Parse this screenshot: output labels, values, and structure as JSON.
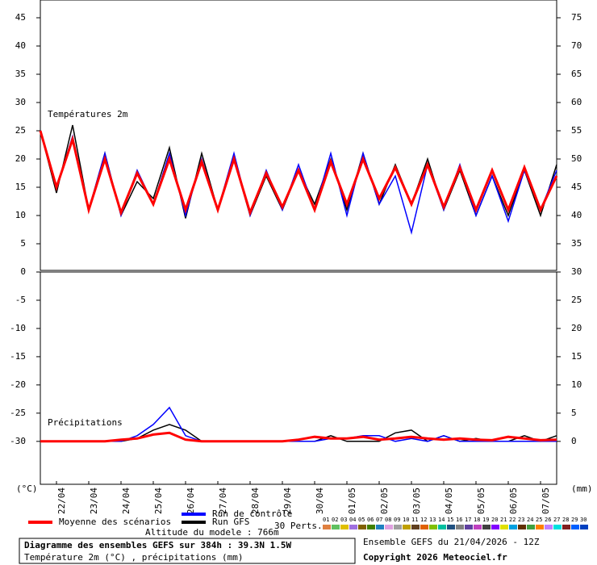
{
  "chart_data": [
    {
      "type": "line",
      "title": "Températures 2m",
      "x": [
        0,
        12,
        24,
        36,
        48,
        60,
        72,
        84,
        96,
        108,
        120,
        132,
        144,
        156,
        168,
        180,
        192,
        204,
        216,
        228,
        240,
        252,
        264,
        276,
        288,
        300,
        312,
        324,
        336,
        348,
        360,
        372,
        384
      ],
      "xlim": [
        0,
        384
      ],
      "ylim": [
        0,
        48
      ],
      "yticks": [
        5,
        10,
        15,
        20,
        25,
        30,
        35,
        40,
        45
      ],
      "y2lim": [
        30,
        78
      ],
      "y2ticks": [
        35,
        40,
        45,
        50,
        55,
        60,
        65,
        70,
        75
      ],
      "grid": false,
      "series": [
        {
          "name": "Moyenne des scénarios",
          "color": "#ff0000",
          "values": [
            25,
            15,
            23.5,
            11,
            20,
            10.5,
            17.5,
            12,
            20,
            11,
            19.5,
            11,
            20,
            10.5,
            17.5,
            11.5,
            18,
            11,
            19.5,
            12,
            20,
            13,
            18.5,
            12,
            19,
            11.5,
            18.5,
            11,
            18,
            11,
            18.5,
            11,
            17
          ]
        },
        {
          "name": "Run de contrôle",
          "color": "#0000ff",
          "values": [
            25,
            15,
            24,
            11,
            21,
            10,
            18,
            12,
            21,
            10,
            20,
            11,
            21,
            10,
            18,
            11,
            19,
            11,
            21,
            10,
            21,
            12,
            17,
            7,
            19,
            11,
            19,
            10,
            17,
            9,
            18,
            11,
            18
          ]
        },
        {
          "name": "Run GFS",
          "color": "#000000",
          "values": [
            25,
            14,
            26,
            11,
            21,
            10,
            16,
            13,
            22,
            9.5,
            21,
            11,
            20,
            10,
            17,
            11,
            18,
            12,
            20,
            11,
            21,
            12,
            19,
            12,
            20,
            11,
            18,
            10,
            17,
            10,
            18,
            10,
            19
          ]
        }
      ],
      "perturbations_label": "30 Perts.",
      "perturbations": [
        {
          "name": "01",
          "color": "#e08040"
        },
        {
          "name": "02",
          "color": "#60c060"
        },
        {
          "name": "03",
          "color": "#e0c000"
        },
        {
          "name": "04",
          "color": "#a070e0"
        },
        {
          "name": "05",
          "color": "#806000"
        },
        {
          "name": "06",
          "color": "#408000"
        },
        {
          "name": "07",
          "color": "#2080c0"
        },
        {
          "name": "08",
          "color": "#e0a0e0"
        },
        {
          "name": "09",
          "color": "#a0a0a0"
        },
        {
          "name": "10",
          "color": "#c0a000"
        },
        {
          "name": "11",
          "color": "#604020"
        },
        {
          "name": "12",
          "color": "#e06000"
        },
        {
          "name": "13",
          "color": "#80c000"
        },
        {
          "name": "14",
          "color": "#00c0a0"
        },
        {
          "name": "15",
          "color": "#205080"
        },
        {
          "name": "16",
          "color": "#808080"
        },
        {
          "name": "17",
          "color": "#6040a0"
        },
        {
          "name": "18",
          "color": "#c040c0"
        },
        {
          "name": "19",
          "color": "#404040"
        },
        {
          "name": "20",
          "color": "#8000ff"
        },
        {
          "name": "21",
          "color": "#e0e000"
        },
        {
          "name": "22",
          "color": "#00a0e0"
        },
        {
          "name": "23",
          "color": "#603000"
        },
        {
          "name": "24",
          "color": "#40a040"
        },
        {
          "name": "25",
          "color": "#ff8000"
        },
        {
          "name": "26",
          "color": "#c080ff"
        },
        {
          "name": "27",
          "color": "#00e0e0"
        },
        {
          "name": "28",
          "color": "#802020"
        },
        {
          "name": "29",
          "color": "#0060ff"
        },
        {
          "name": "30",
          "color": "#0040c0"
        }
      ]
    },
    {
      "type": "line",
      "title": "Précipitations",
      "x": [
        0,
        12,
        24,
        36,
        48,
        60,
        72,
        84,
        96,
        108,
        120,
        132,
        144,
        156,
        168,
        180,
        192,
        204,
        216,
        228,
        240,
        252,
        264,
        276,
        288,
        300,
        312,
        324,
        336,
        348,
        360,
        372,
        384
      ],
      "xlim": [
        0,
        384
      ],
      "xticks": [
        {
          "value": 12,
          "label": "22/04"
        },
        {
          "value": 36,
          "label": "23/04"
        },
        {
          "value": 60,
          "label": "24/04"
        },
        {
          "value": 84,
          "label": "25/04"
        },
        {
          "value": 108,
          "label": "26/04"
        },
        {
          "value": 132,
          "label": "27/04"
        },
        {
          "value": 156,
          "label": "28/04"
        },
        {
          "value": 180,
          "label": "29/04"
        },
        {
          "value": 204,
          "label": "30/04"
        },
        {
          "value": 228,
          "label": "01/05"
        },
        {
          "value": 252,
          "label": "02/05"
        },
        {
          "value": 276,
          "label": "03/05"
        },
        {
          "value": 300,
          "label": "04/05"
        },
        {
          "value": 324,
          "label": "05/05"
        },
        {
          "value": 348,
          "label": "06/05"
        },
        {
          "value": 372,
          "label": "07/05"
        }
      ],
      "ylim": [
        -37.6,
        0
      ],
      "yticks": [
        0,
        -5,
        -10,
        -15,
        -20,
        -25,
        -30
      ],
      "y2lim": [
        -7.6,
        30
      ],
      "y2ticks": [
        0,
        5,
        10,
        15,
        20,
        25,
        30
      ],
      "y_label": "(°C)",
      "y2_label": "(mm)",
      "grid": false,
      "series": [
        {
          "name": "Moyenne des scénarios",
          "color": "#ff0000",
          "axis": "y2",
          "values": [
            0,
            0,
            0,
            0,
            0,
            0.3,
            0.5,
            1.2,
            1.5,
            0.3,
            0,
            0,
            0,
            0,
            0,
            0,
            0.3,
            0.8,
            0.5,
            0.5,
            0.8,
            0.3,
            0.5,
            0.8,
            0.5,
            0.3,
            0.5,
            0.3,
            0.2,
            0.8,
            0.5,
            0.2,
            0.3
          ]
        },
        {
          "name": "Run de contrôle",
          "color": "#0000ff",
          "axis": "y2",
          "values": [
            0,
            0,
            0,
            0,
            0,
            0,
            1,
            3,
            6,
            1,
            0,
            0,
            0,
            0,
            0,
            0,
            0,
            0,
            0.5,
            0.5,
            1,
            1,
            0,
            0.5,
            0,
            1,
            0,
            0,
            0,
            0,
            0,
            0,
            0
          ]
        },
        {
          "name": "Run GFS",
          "color": "#000000",
          "axis": "y2",
          "values": [
            0,
            0,
            0,
            0,
            0,
            0,
            0.5,
            2,
            3,
            2,
            0,
            0,
            0,
            0,
            0,
            0,
            0,
            0,
            1,
            0,
            0,
            0,
            1.5,
            2,
            0,
            1,
            0,
            0.5,
            0,
            0,
            1,
            0,
            1
          ]
        }
      ]
    }
  ],
  "footer": {
    "altitude": "Altitude du modele : 766m",
    "title": "Diagramme des ensembles GEFS sur 384h : 39.3N 1.5W",
    "subtitle": "Température 2m (°C) , précipitations (mm)",
    "run": "Ensemble GEFS du 21/04/2026 - 12Z",
    "copyright": "Copyright 2026 Meteociel.fr"
  }
}
